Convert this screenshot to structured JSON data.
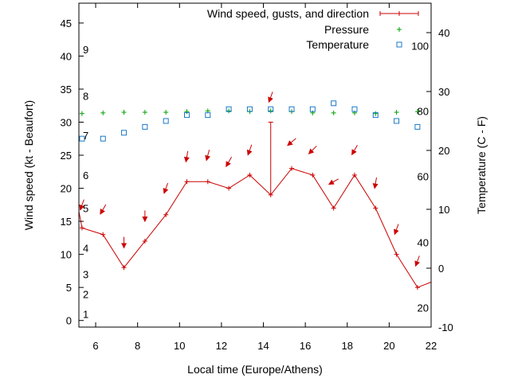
{
  "chart_data": {
    "type": "line",
    "xlabel": "Local time (Europe/Athens)",
    "ylabel": "Wind speed (kt - Beaufort)",
    "y2label": "Temperature (C - F)",
    "xlim": [
      5.2,
      22
    ],
    "ylim": [
      -1,
      48
    ],
    "y2lim": [
      -10,
      45
    ],
    "x_ticks": [
      6,
      8,
      10,
      12,
      14,
      16,
      18,
      20,
      22
    ],
    "y_ticks": [
      0,
      5,
      10,
      15,
      20,
      25,
      30,
      35,
      40,
      45
    ],
    "y2_ticks": [
      -10,
      0,
      10,
      20,
      30,
      40
    ],
    "beaufort_labels": [
      {
        "text": "1",
        "y": 1
      },
      {
        "text": "2",
        "y": 4
      },
      {
        "text": "3",
        "y": 7
      },
      {
        "text": "4",
        "y": 11
      },
      {
        "text": "5",
        "y": 17
      },
      {
        "text": "6",
        "y": 22
      },
      {
        "text": "7",
        "y": 28
      },
      {
        "text": "8",
        "y": 34
      },
      {
        "text": "9",
        "y": 41
      }
    ],
    "fahrenheit_labels": [
      {
        "text": "20",
        "y2": -6.7
      },
      {
        "text": "40",
        "y2": 4.4
      },
      {
        "text": "60",
        "y2": 15.6
      },
      {
        "text": "80",
        "y2": 26.7
      },
      {
        "text": "100",
        "y2": 37.8
      }
    ],
    "legend_position": "top-right",
    "series": [
      {
        "name": "Wind speed, gusts, and direction",
        "color": "#cc0000",
        "axis": "y",
        "x": [
          5.2,
          5.35,
          6.35,
          7.35,
          8.35,
          9.35,
          10.35,
          11.35,
          12.35,
          13.35,
          14.35,
          15.35,
          16.35,
          17.35,
          18.35,
          19.35,
          20.35,
          21.35,
          22
        ],
        "values": [
          16.5,
          14,
          13,
          8,
          12,
          16,
          21,
          21,
          20,
          22,
          19,
          23,
          22,
          17,
          22,
          17,
          10,
          5,
          5.8
        ]
      },
      {
        "name": "Pressure",
        "color": "#00a000",
        "axis": "y",
        "x": [
          5.35,
          6.35,
          7.35,
          8.35,
          9.35,
          10.35,
          11.35,
          12.35,
          13.35,
          14.35,
          15.35,
          16.35,
          17.35,
          18.35,
          19.35,
          20.35,
          21.35
        ],
        "values": [
          31.3,
          31.4,
          31.5,
          31.5,
          31.5,
          31.6,
          31.7,
          31.7,
          31.6,
          31.7,
          31.6,
          31.4,
          31.4,
          31.4,
          31.3,
          31.5,
          31.6
        ]
      },
      {
        "name": "Temperature",
        "color": "#1a78c8",
        "axis": "y2",
        "x": [
          5.35,
          6.35,
          7.35,
          8.35,
          9.35,
          10.35,
          11.35,
          12.35,
          13.35,
          14.35,
          15.35,
          16.35,
          17.35,
          18.35,
          19.35,
          20.35,
          21.35
        ],
        "values": [
          22,
          22,
          23,
          24,
          25,
          26,
          26,
          27,
          27,
          27,
          27,
          27,
          28,
          27,
          26,
          25,
          24
        ]
      }
    ],
    "gusts": [
      {
        "x": 14.35,
        "low": 19,
        "high": 30
      }
    ],
    "wind_direction_arrows": {
      "color": "#cc0000",
      "x": [
        5.35,
        6.35,
        7.35,
        8.35,
        9.35,
        10.35,
        11.35,
        12.35,
        13.35,
        14.35,
        15.35,
        16.35,
        17.35,
        18.35,
        19.35,
        20.35,
        21.35
      ],
      "y": [
        17.5,
        16.8,
        11.8,
        15.8,
        20.0,
        24.8,
        25.0,
        24.0,
        25.8,
        33.8,
        27.0,
        25.8,
        21.0,
        25.8,
        20.8,
        13.8,
        9.0
      ],
      "bearing_deg": [
        20,
        30,
        0,
        0,
        20,
        10,
        15,
        30,
        20,
        20,
        50,
        45,
        60,
        30,
        10,
        20,
        20
      ]
    }
  }
}
